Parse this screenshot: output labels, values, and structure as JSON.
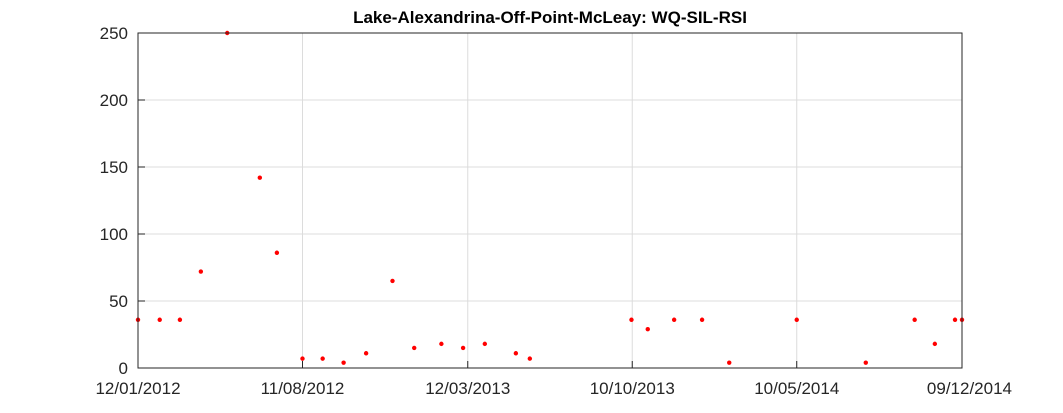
{
  "chart_data": {
    "type": "scatter",
    "title": "Lake-Alexandrina-Off-Point-McLeay: WQ-SIL-RSI",
    "xlabel": "",
    "ylabel": "",
    "x_type": "date",
    "xlim": [
      "2012-01-12",
      "2014-12-09"
    ],
    "ylim": [
      0,
      250
    ],
    "x_ticks": [
      {
        "date": "2012-01-12",
        "label": "12/01/2012"
      },
      {
        "date": "2012-08-11",
        "label": "11/08/2012"
      },
      {
        "date": "2013-03-12",
        "label": "12/03/2013"
      },
      {
        "date": "2013-10-10",
        "label": "10/10/2013"
      },
      {
        "date": "2014-05-10",
        "label": "10/05/2014"
      },
      {
        "date": "2014-12-09",
        "label": "09/12/2014"
      }
    ],
    "y_ticks": [
      0,
      50,
      100,
      150,
      200,
      250
    ],
    "grid": true,
    "marker_color": "#ff0000",
    "points": [
      {
        "x": "2012-01-12",
        "y": 36
      },
      {
        "x": "2012-02-09",
        "y": 36
      },
      {
        "x": "2012-03-06",
        "y": 36
      },
      {
        "x": "2012-04-02",
        "y": 72
      },
      {
        "x": "2012-05-06",
        "y": 250
      },
      {
        "x": "2012-06-17",
        "y": 142
      },
      {
        "x": "2012-07-09",
        "y": 86
      },
      {
        "x": "2012-08-11",
        "y": 7
      },
      {
        "x": "2012-09-06",
        "y": 7
      },
      {
        "x": "2012-10-03",
        "y": 4
      },
      {
        "x": "2012-11-01",
        "y": 11
      },
      {
        "x": "2012-12-05",
        "y": 65
      },
      {
        "x": "2013-01-02",
        "y": 15
      },
      {
        "x": "2013-02-06",
        "y": 18
      },
      {
        "x": "2013-03-06",
        "y": 15
      },
      {
        "x": "2013-04-03",
        "y": 18
      },
      {
        "x": "2013-05-13",
        "y": 11
      },
      {
        "x": "2013-05-31",
        "y": 7
      },
      {
        "x": "2013-10-09",
        "y": 36
      },
      {
        "x": "2013-10-30",
        "y": 29
      },
      {
        "x": "2013-12-03",
        "y": 36
      },
      {
        "x": "2014-01-08",
        "y": 36
      },
      {
        "x": "2014-02-12",
        "y": 4
      },
      {
        "x": "2014-05-10",
        "y": 36
      },
      {
        "x": "2014-08-07",
        "y": 4
      },
      {
        "x": "2014-10-09",
        "y": 36
      },
      {
        "x": "2014-11-04",
        "y": 18
      },
      {
        "x": "2014-11-30",
        "y": 36
      },
      {
        "x": "2014-12-09",
        "y": 36
      }
    ]
  }
}
